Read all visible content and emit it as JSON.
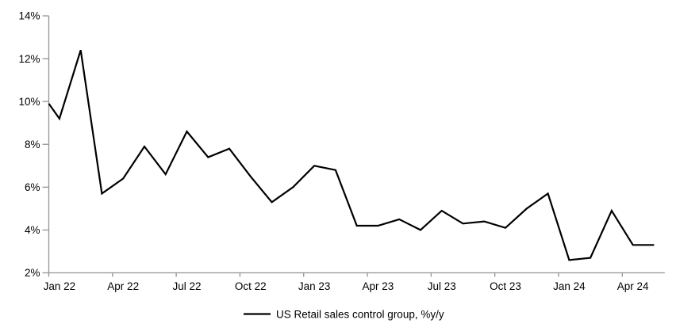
{
  "chart_data": {
    "type": "line",
    "title": "",
    "legend_label": "US Retail sales control group, %y/y",
    "legend_position": "bottom-center",
    "grid": false,
    "ylim": [
      2,
      14
    ],
    "y_ticks": [
      2,
      4,
      6,
      8,
      10,
      12,
      14
    ],
    "y_tick_labels": [
      "2%",
      "4%",
      "6%",
      "8%",
      "10%",
      "12%",
      "14%"
    ],
    "x_tick_labels": [
      "Jan 22",
      "Apr 22",
      "Jul 22",
      "Oct 22",
      "Jan 23",
      "Apr 23",
      "Jul 23",
      "Oct 23",
      "Jan 24",
      "Apr 24"
    ],
    "x_tick_every_n_categories": 3,
    "first_point_clipped_to_y_axis": true,
    "x": [
      "Dec 21",
      "Jan 22",
      "Feb 22",
      "Mar 22",
      "Apr 22",
      "May 22",
      "Jun 22",
      "Jul 22",
      "Aug 22",
      "Sep 22",
      "Oct 22",
      "Nov 22",
      "Dec 22",
      "Jan 23",
      "Feb 23",
      "Mar 23",
      "Apr 23",
      "May 23",
      "Jun 23",
      "Jul 23",
      "Aug 23",
      "Sep 23",
      "Oct 23",
      "Nov 23",
      "Dec 23",
      "Jan 24",
      "Feb 24",
      "Mar 24",
      "Apr 24",
      "May 24"
    ],
    "series": [
      {
        "name": "US Retail sales control group, %y/y",
        "values": [
          9.9,
          9.2,
          12.4,
          5.7,
          6.4,
          7.9,
          6.6,
          8.6,
          7.4,
          7.8,
          6.5,
          5.3,
          6.0,
          7.0,
          6.8,
          4.2,
          4.2,
          4.5,
          4.0,
          4.9,
          4.3,
          4.4,
          4.1,
          5.0,
          5.7,
          2.6,
          2.7,
          4.9,
          3.3,
          3.3
        ]
      }
    ],
    "colors": {
      "line": "#000000",
      "axis": "#949494",
      "text": "#000000",
      "background": "#ffffff"
    }
  }
}
